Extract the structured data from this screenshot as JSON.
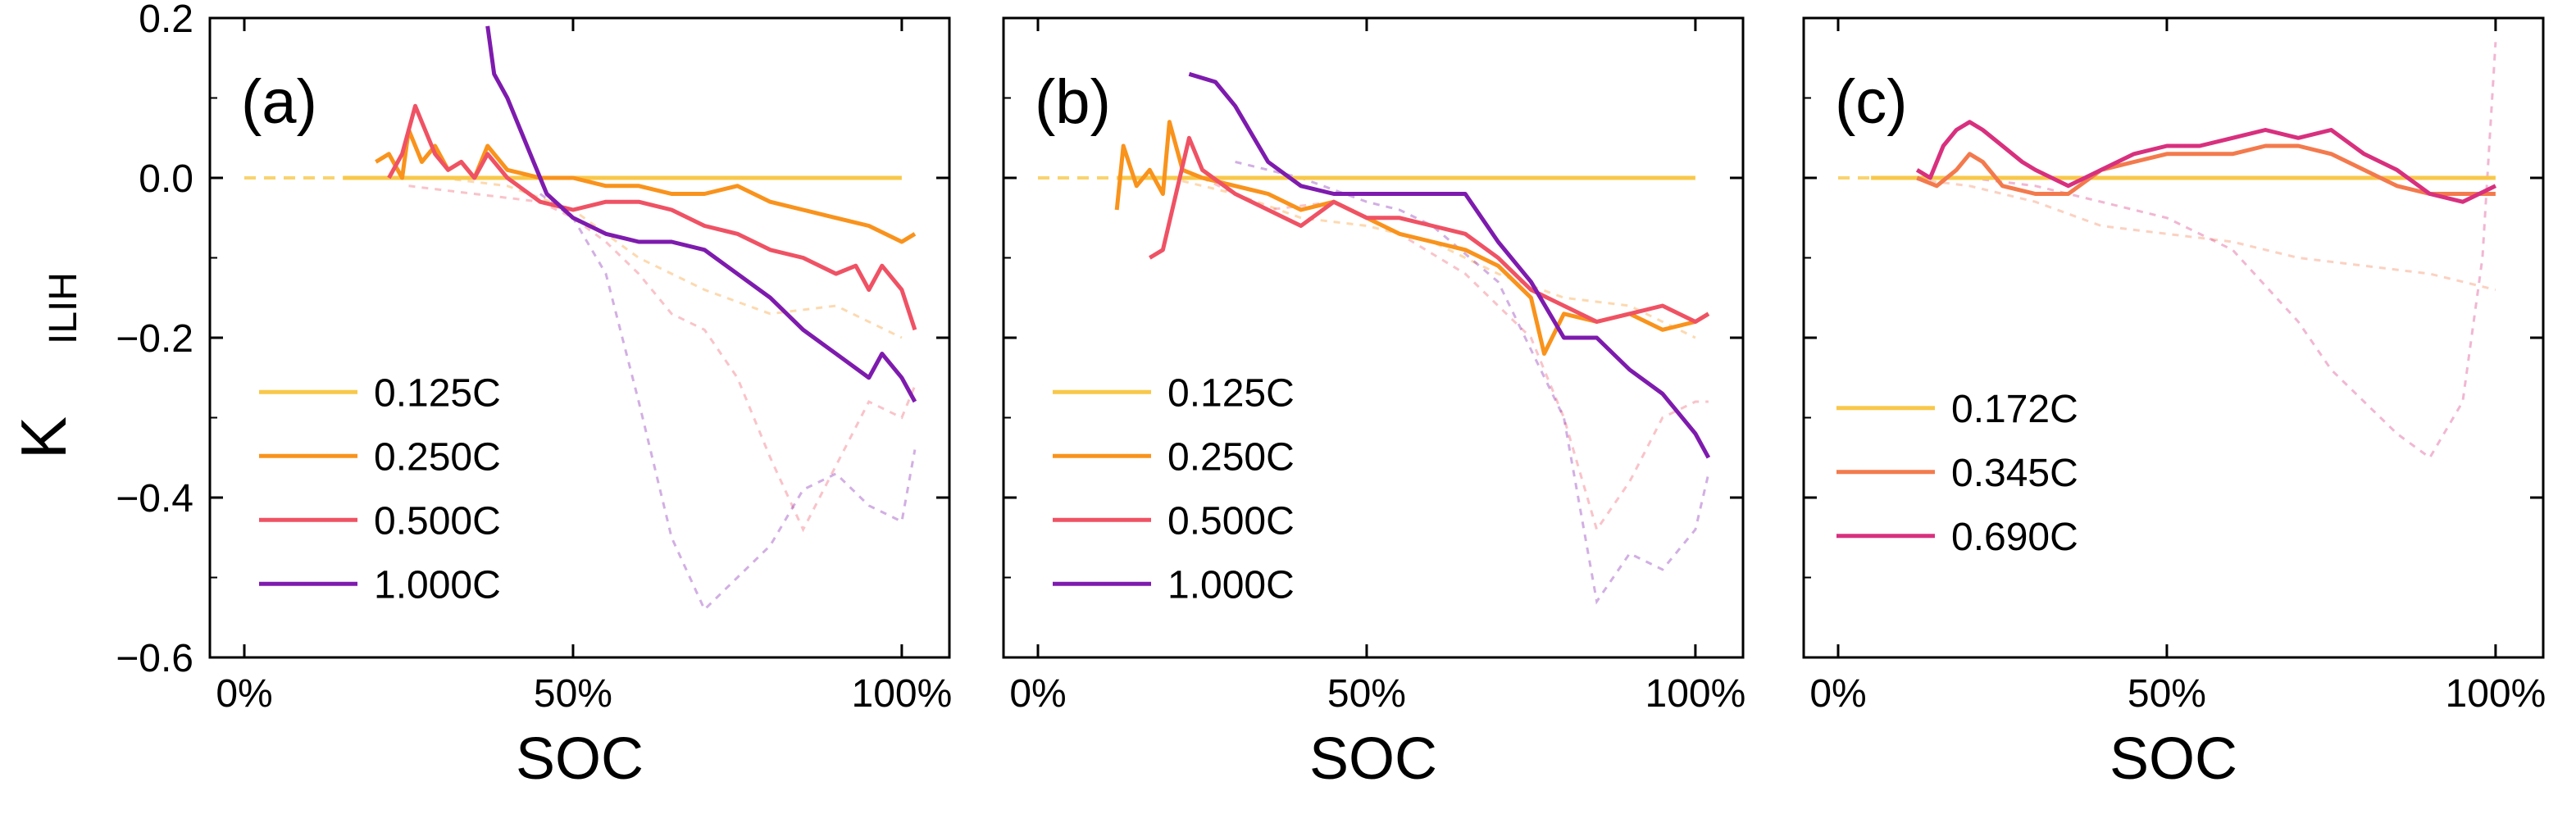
{
  "figure": {
    "ylabel_main": "K",
    "ylabel_sub": "ILIH",
    "colors": {
      "c0125": "#F8C84A",
      "c0250": "#F9931C",
      "c0500": "#EF5264",
      "c1000": "#7E1BAE",
      "c0172": "#F8C84A",
      "c0345": "#F37A4D",
      "c0690": "#D8307E"
    }
  },
  "chart_data": [
    {
      "type": "line",
      "panel_label": "(a)",
      "xlabel": "SOC",
      "ylabel": "K_ILIH",
      "xlim": [
        0,
        1.05
      ],
      "ylim": [
        -0.6,
        0.2
      ],
      "xticks": [
        0,
        0.5,
        1.0
      ],
      "xtick_labels": [
        "0%",
        "50%",
        "100%"
      ],
      "yticks": [
        -0.6,
        -0.4,
        -0.2,
        0.0,
        0.2
      ],
      "ytick_labels": [
        "−0.6",
        "−0.4",
        "−0.2",
        "0.0",
        "0.2"
      ],
      "legend_position": "lower-left",
      "series": [
        {
          "name": "0.125C",
          "color_key": "c0125",
          "x": [
            0.15,
            1.0
          ],
          "y": [
            0.0,
            0.0
          ],
          "dashed_x": [
            0.0,
            0.15
          ],
          "dashed_y": [
            0.0,
            0.0
          ]
        },
        {
          "name": "0.250C",
          "color_key": "c0250",
          "x": [
            0.2,
            0.22,
            0.24,
            0.25,
            0.27,
            0.29,
            0.31,
            0.33,
            0.35,
            0.37,
            0.4,
            0.45,
            0.5,
            0.55,
            0.6,
            0.65,
            0.7,
            0.75,
            0.8,
            0.85,
            0.9,
            0.95,
            1.0,
            1.02
          ],
          "y": [
            0.02,
            0.03,
            0.0,
            0.06,
            0.02,
            0.04,
            0.01,
            0.02,
            0.0,
            0.04,
            0.01,
            0.0,
            0.0,
            -0.01,
            -0.01,
            -0.02,
            -0.02,
            -0.01,
            -0.03,
            -0.04,
            -0.05,
            -0.06,
            -0.08,
            -0.07
          ]
        },
        {
          "name": "0.500C",
          "color_key": "c0500",
          "x": [
            0.22,
            0.24,
            0.26,
            0.27,
            0.29,
            0.31,
            0.33,
            0.35,
            0.37,
            0.4,
            0.45,
            0.5,
            0.55,
            0.6,
            0.65,
            0.7,
            0.75,
            0.8,
            0.85,
            0.9,
            0.93,
            0.95,
            0.97,
            1.0,
            1.02
          ],
          "y": [
            0.0,
            0.03,
            0.09,
            0.07,
            0.03,
            0.01,
            0.02,
            0.0,
            0.03,
            0.0,
            -0.03,
            -0.04,
            -0.03,
            -0.03,
            -0.04,
            -0.06,
            -0.07,
            -0.09,
            -0.1,
            -0.12,
            -0.11,
            -0.14,
            -0.11,
            -0.14,
            -0.19
          ]
        },
        {
          "name": "1.000C",
          "color_key": "c1000",
          "x": [
            0.37,
            0.38,
            0.4,
            0.42,
            0.44,
            0.46,
            0.5,
            0.55,
            0.6,
            0.65,
            0.7,
            0.75,
            0.8,
            0.85,
            0.9,
            0.95,
            0.97,
            1.0,
            1.02
          ],
          "y": [
            0.19,
            0.13,
            0.1,
            0.06,
            0.02,
            -0.02,
            -0.05,
            -0.07,
            -0.08,
            -0.08,
            -0.09,
            -0.12,
            -0.15,
            -0.19,
            -0.22,
            -0.25,
            -0.22,
            -0.25,
            -0.28
          ]
        }
      ],
      "faded_traces": [
        {
          "color_key": "c0250",
          "x": [
            0.3,
            0.4,
            0.5,
            0.6,
            0.7,
            0.8,
            0.9,
            1.0
          ],
          "y": [
            0.0,
            -0.01,
            -0.04,
            -0.1,
            -0.14,
            -0.17,
            -0.16,
            -0.2
          ]
        },
        {
          "color_key": "c0500",
          "x": [
            0.25,
            0.35,
            0.45,
            0.5,
            0.55,
            0.6,
            0.65,
            0.7,
            0.75,
            0.8,
            0.85,
            0.9,
            0.95,
            1.0,
            1.02
          ],
          "y": [
            -0.01,
            -0.02,
            -0.03,
            -0.05,
            -0.08,
            -0.12,
            -0.17,
            -0.19,
            -0.25,
            -0.35,
            -0.44,
            -0.36,
            -0.28,
            -0.3,
            -0.26
          ]
        },
        {
          "color_key": "c1000",
          "x": [
            0.45,
            0.5,
            0.55,
            0.6,
            0.65,
            0.7,
            0.75,
            0.8,
            0.85,
            0.9,
            0.95,
            1.0,
            1.02
          ],
          "y": [
            -0.02,
            -0.05,
            -0.12,
            -0.28,
            -0.45,
            -0.54,
            -0.5,
            -0.46,
            -0.39,
            -0.37,
            -0.41,
            -0.43,
            -0.34
          ]
        }
      ]
    },
    {
      "type": "line",
      "panel_label": "(b)",
      "xlabel": "SOC",
      "xlim": [
        0,
        1.05
      ],
      "ylim": [
        -0.6,
        0.2
      ],
      "xticks": [
        0,
        0.5,
        1.0
      ],
      "xtick_labels": [
        "0%",
        "50%",
        "100%"
      ],
      "legend_position": "lower-left",
      "series": [
        {
          "name": "0.125C",
          "color_key": "c0125",
          "x": [
            0.12,
            1.0
          ],
          "y": [
            0.0,
            0.0
          ],
          "dashed_x": [
            0.0,
            0.12
          ],
          "dashed_y": [
            0.0,
            0.0
          ]
        },
        {
          "name": "0.250C",
          "color_key": "c0250",
          "x": [
            0.12,
            0.13,
            0.15,
            0.17,
            0.19,
            0.2,
            0.22,
            0.25,
            0.3,
            0.35,
            0.4,
            0.45,
            0.5,
            0.55,
            0.6,
            0.65,
            0.7,
            0.75,
            0.77,
            0.8,
            0.85,
            0.9,
            0.95,
            1.0,
            1.02
          ],
          "y": [
            -0.04,
            0.04,
            -0.01,
            0.01,
            -0.02,
            0.07,
            0.01,
            0.0,
            -0.01,
            -0.02,
            -0.04,
            -0.03,
            -0.05,
            -0.07,
            -0.08,
            -0.09,
            -0.11,
            -0.15,
            -0.22,
            -0.17,
            -0.18,
            -0.17,
            -0.19,
            -0.18,
            -0.17
          ]
        },
        {
          "name": "0.500C",
          "color_key": "c0500",
          "x": [
            0.17,
            0.19,
            0.21,
            0.23,
            0.25,
            0.3,
            0.35,
            0.4,
            0.45,
            0.5,
            0.55,
            0.6,
            0.65,
            0.7,
            0.75,
            0.8,
            0.85,
            0.9,
            0.95,
            1.0,
            1.02
          ],
          "y": [
            -0.1,
            -0.09,
            -0.02,
            0.05,
            0.01,
            -0.02,
            -0.04,
            -0.06,
            -0.03,
            -0.05,
            -0.05,
            -0.06,
            -0.07,
            -0.1,
            -0.14,
            -0.16,
            -0.18,
            -0.17,
            -0.16,
            -0.18,
            -0.17
          ]
        },
        {
          "name": "1.000C",
          "color_key": "c1000",
          "x": [
            0.23,
            0.27,
            0.3,
            0.35,
            0.4,
            0.45,
            0.5,
            0.55,
            0.6,
            0.65,
            0.7,
            0.75,
            0.8,
            0.85,
            0.9,
            0.95,
            0.97,
            1.0,
            1.02
          ],
          "y": [
            0.13,
            0.12,
            0.09,
            0.02,
            -0.01,
            -0.02,
            -0.02,
            -0.02,
            -0.02,
            -0.02,
            -0.08,
            -0.13,
            -0.2,
            -0.2,
            -0.24,
            -0.27,
            -0.29,
            -0.32,
            -0.35
          ]
        }
      ],
      "faded_traces": [
        {
          "color_key": "c0250",
          "x": [
            0.2,
            0.3,
            0.4,
            0.5,
            0.6,
            0.7,
            0.8,
            0.9,
            1.0
          ],
          "y": [
            0.0,
            -0.02,
            -0.05,
            -0.06,
            -0.08,
            -0.12,
            -0.15,
            -0.16,
            -0.2
          ]
        },
        {
          "color_key": "c0500",
          "x": [
            0.25,
            0.35,
            0.45,
            0.55,
            0.65,
            0.7,
            0.75,
            0.8,
            0.85,
            0.9,
            0.95,
            1.0,
            1.02
          ],
          "y": [
            0.0,
            -0.04,
            -0.03,
            -0.07,
            -0.12,
            -0.16,
            -0.2,
            -0.3,
            -0.44,
            -0.38,
            -0.3,
            -0.28,
            -0.28
          ]
        },
        {
          "color_key": "c1000",
          "x": [
            0.3,
            0.4,
            0.5,
            0.55,
            0.6,
            0.7,
            0.8,
            0.85,
            0.9,
            0.95,
            1.0,
            1.02
          ],
          "y": [
            0.02,
            0.0,
            -0.03,
            -0.04,
            -0.06,
            -0.13,
            -0.3,
            -0.53,
            -0.47,
            -0.49,
            -0.44,
            -0.37
          ]
        }
      ]
    },
    {
      "type": "line",
      "panel_label": "(c)",
      "xlabel": "SOC",
      "xlim": [
        0,
        1.05
      ],
      "ylim": [
        -0.6,
        0.2
      ],
      "xticks": [
        0,
        0.5,
        1.0
      ],
      "xtick_labels": [
        "0%",
        "50%",
        "100%"
      ],
      "legend_position": "middle-left",
      "series": [
        {
          "name": "0.172C",
          "color_key": "c0172",
          "x": [
            0.05,
            1.0
          ],
          "y": [
            0.0,
            0.0
          ],
          "dashed_x": [
            0.0,
            0.05
          ],
          "dashed_y": [
            0.0,
            0.0
          ]
        },
        {
          "name": "0.345C",
          "color_key": "c0345",
          "x": [
            0.12,
            0.15,
            0.18,
            0.2,
            0.22,
            0.25,
            0.3,
            0.35,
            0.4,
            0.45,
            0.5,
            0.55,
            0.6,
            0.65,
            0.7,
            0.75,
            0.8,
            0.85,
            0.9,
            0.95,
            1.0
          ],
          "y": [
            0.0,
            -0.01,
            0.01,
            0.03,
            0.02,
            -0.01,
            -0.02,
            -0.02,
            0.01,
            0.02,
            0.03,
            0.03,
            0.03,
            0.04,
            0.04,
            0.03,
            0.01,
            -0.01,
            -0.02,
            -0.02,
            -0.02
          ]
        },
        {
          "name": "0.690C",
          "color_key": "c0690",
          "x": [
            0.12,
            0.14,
            0.16,
            0.18,
            0.2,
            0.22,
            0.25,
            0.28,
            0.3,
            0.35,
            0.4,
            0.45,
            0.5,
            0.55,
            0.6,
            0.65,
            0.7,
            0.75,
            0.8,
            0.85,
            0.9,
            0.95,
            1.0
          ],
          "y": [
            0.01,
            0.0,
            0.04,
            0.06,
            0.07,
            0.06,
            0.04,
            0.02,
            0.01,
            -0.01,
            0.01,
            0.03,
            0.04,
            0.04,
            0.05,
            0.06,
            0.05,
            0.06,
            0.03,
            0.01,
            -0.02,
            -0.03,
            -0.01
          ]
        }
      ],
      "faded_traces": [
        {
          "color_key": "c0345",
          "x": [
            0.1,
            0.2,
            0.3,
            0.4,
            0.5,
            0.6,
            0.7,
            0.8,
            0.9,
            1.0
          ],
          "y": [
            0.0,
            -0.01,
            -0.03,
            -0.06,
            -0.07,
            -0.08,
            -0.1,
            -0.11,
            -0.12,
            -0.14
          ]
        },
        {
          "color_key": "c0690",
          "x": [
            0.1,
            0.2,
            0.3,
            0.4,
            0.5,
            0.6,
            0.7,
            0.75,
            0.8,
            0.85,
            0.9,
            0.95,
            0.98,
            1.0
          ],
          "y": [
            0.0,
            0.0,
            -0.01,
            -0.03,
            -0.05,
            -0.09,
            -0.18,
            -0.24,
            -0.28,
            -0.32,
            -0.35,
            -0.28,
            -0.1,
            0.17
          ]
        }
      ]
    }
  ]
}
